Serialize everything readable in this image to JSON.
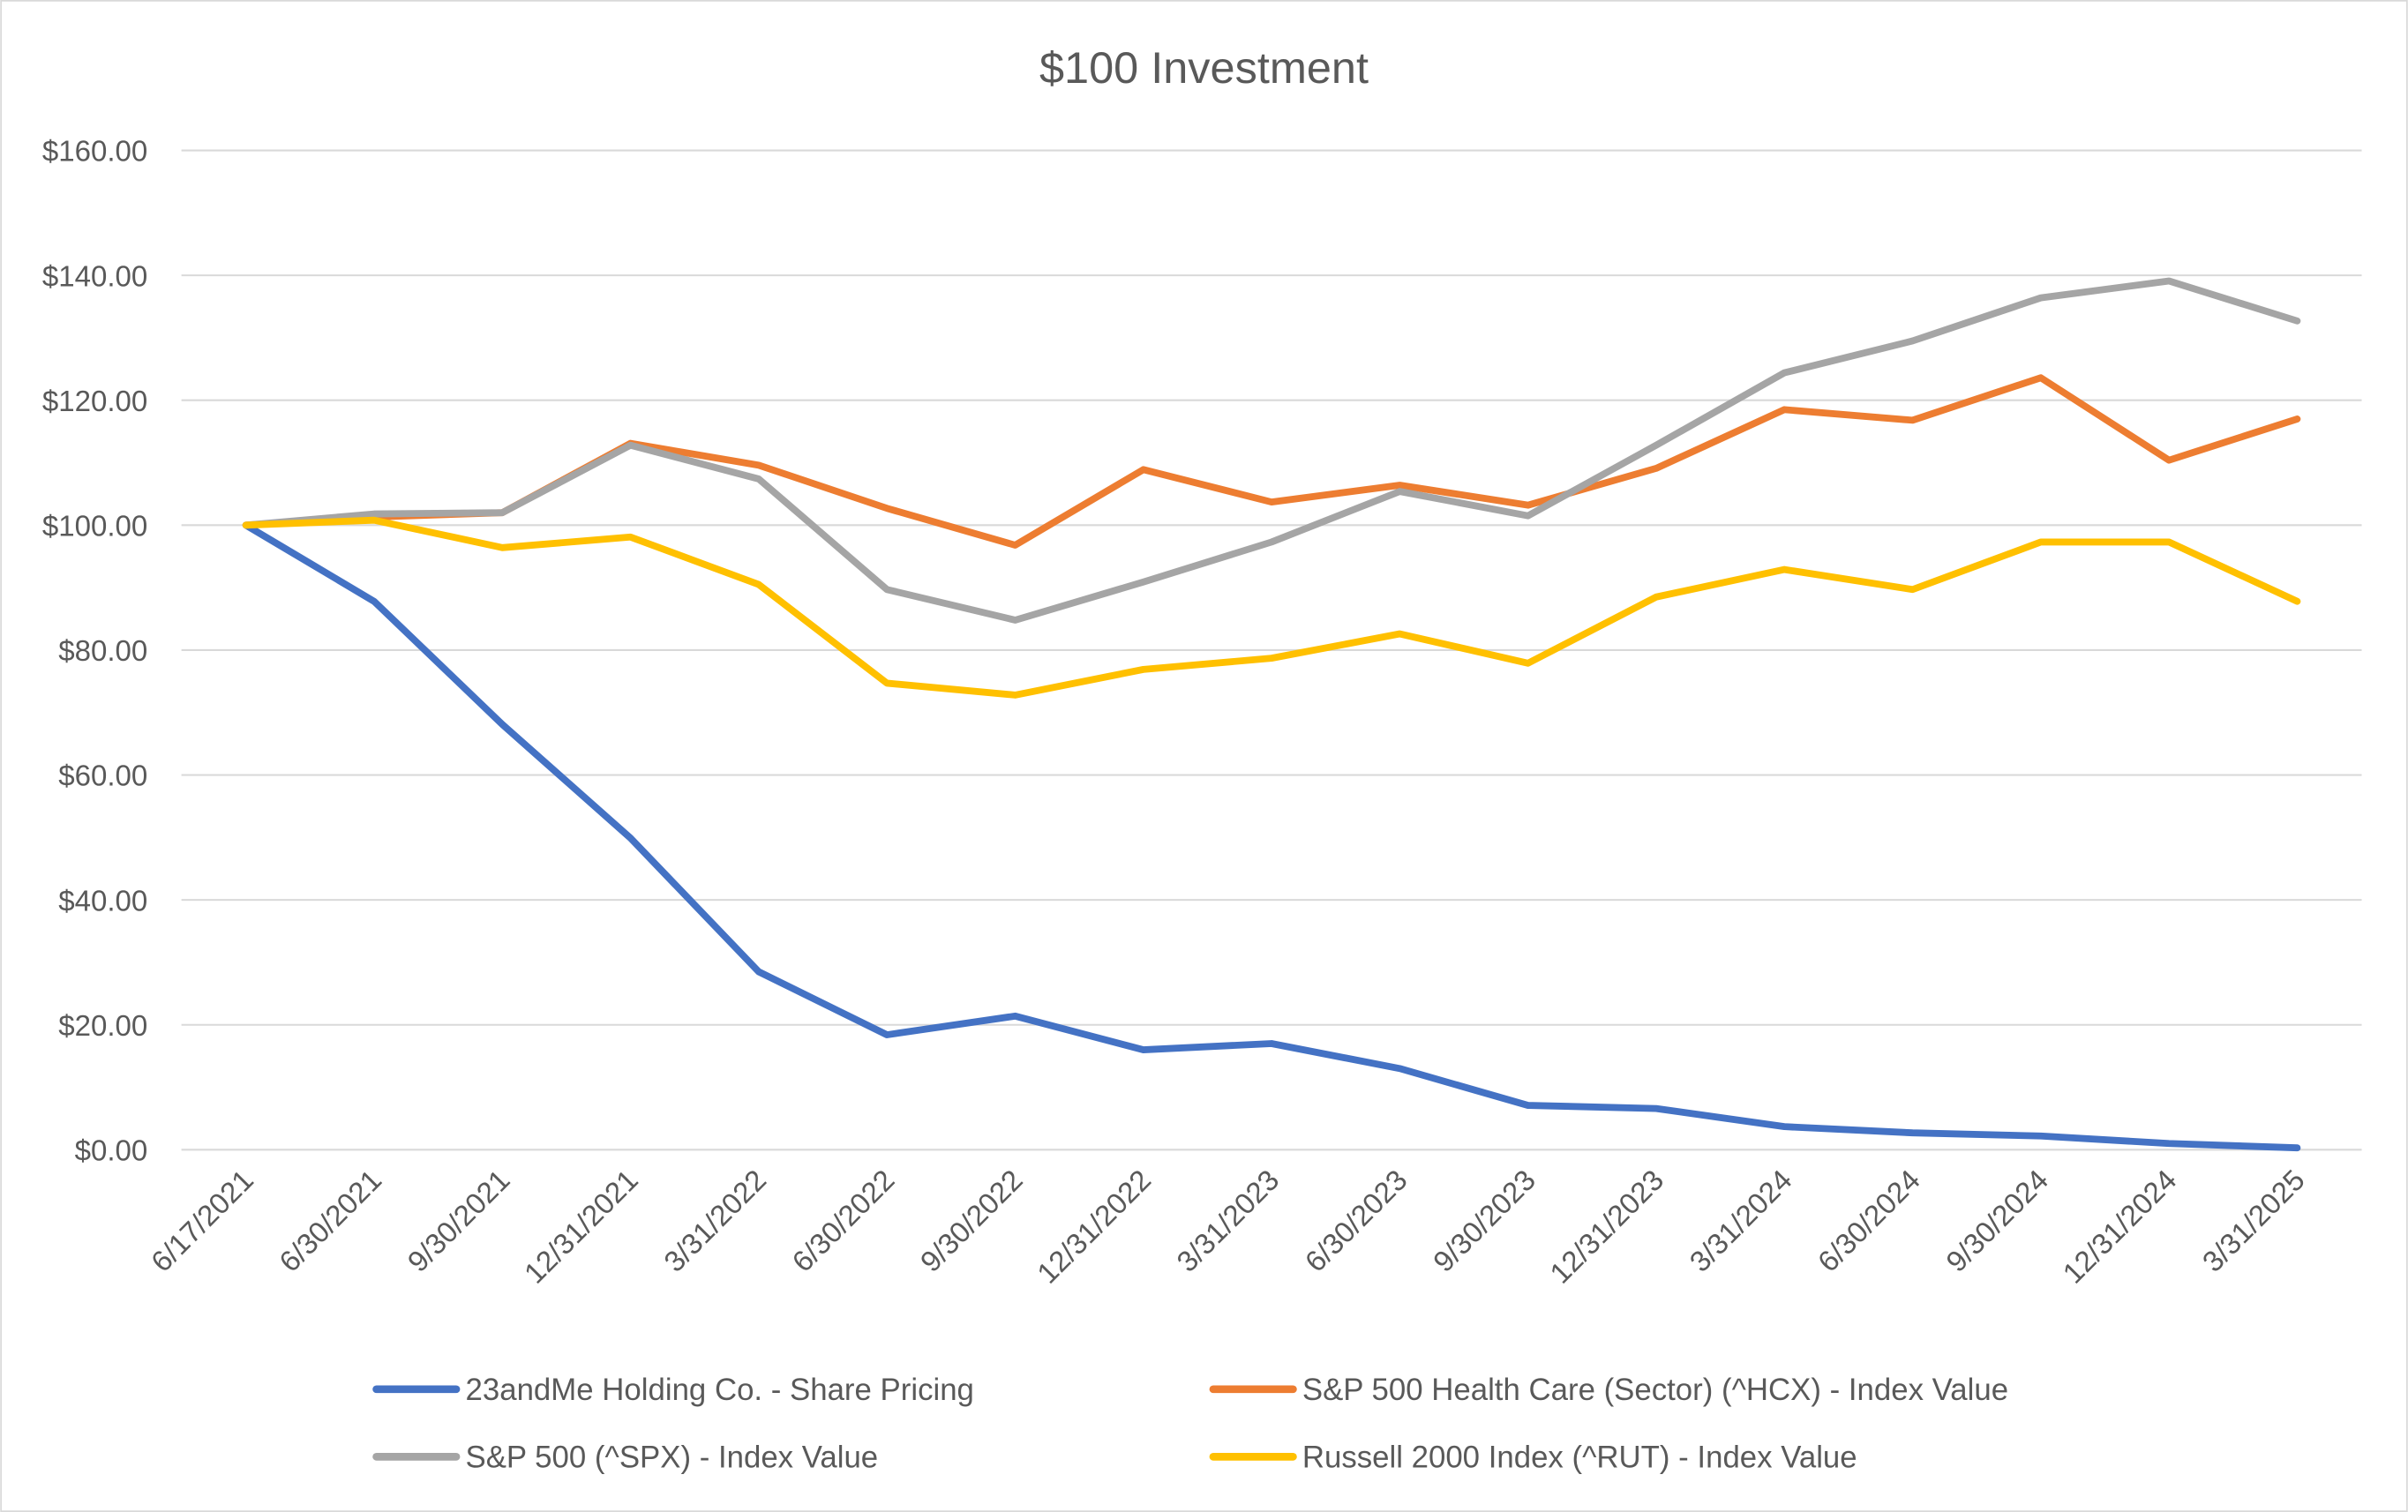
{
  "chart_data": {
    "type": "line",
    "title": "$100 Investment",
    "xlabel": "",
    "ylabel": "",
    "ylim": [
      0,
      160
    ],
    "y_ticks": [
      "$0.00",
      "$20.00",
      "$40.00",
      "$60.00",
      "$80.00",
      "$100.00",
      "$120.00",
      "$140.00",
      "$160.00"
    ],
    "grid": true,
    "legend_position": "bottom",
    "categories": [
      "6/17/2021",
      "6/30/2021",
      "9/30/2021",
      "12/31/2021",
      "3/31/2022",
      "6/30/2022",
      "9/30/2022",
      "12/31/2022",
      "3/31/2023",
      "6/30/2023",
      "9/30/2023",
      "12/31/2023",
      "3/31/2024",
      "6/30/2024",
      "9/30/2024",
      "12/31/2024",
      "3/31/2025"
    ],
    "series": [
      {
        "name": "23andMe Holding Co. - Share Pricing",
        "color": "#4472C4",
        "values": [
          100,
          87.8,
          68.1,
          49.9,
          28.5,
          18.4,
          21.4,
          16.0,
          17.0,
          13.0,
          7.1,
          6.6,
          3.7,
          2.7,
          2.2,
          1.0,
          0.3
        ]
      },
      {
        "name": "S&P 500 Health Care (Sector) (^HCX) - Index Value",
        "color": "#ED7D31",
        "values": [
          100,
          101.3,
          102.0,
          113.1,
          109.6,
          102.7,
          96.8,
          108.9,
          103.7,
          106.4,
          103.2,
          109.1,
          118.5,
          116.8,
          123.6,
          110.4,
          117.0
        ]
      },
      {
        "name": "S&P 500 (^SPX) - Index Value",
        "color": "#A5A5A5",
        "values": [
          100,
          101.8,
          102.0,
          112.8,
          107.4,
          89.7,
          84.8,
          90.9,
          97.3,
          105.4,
          101.5,
          112.8,
          124.4,
          129.5,
          136.4,
          139.1,
          132.7
        ]
      },
      {
        "name": "Russell 2000 Index (^RUT) - Index Value",
        "color": "#FFC000",
        "values": [
          100,
          100.8,
          96.4,
          98.1,
          90.5,
          74.7,
          72.8,
          76.9,
          78.7,
          82.6,
          77.9,
          88.5,
          92.9,
          89.7,
          97.3,
          97.3,
          87.8
        ]
      }
    ]
  }
}
